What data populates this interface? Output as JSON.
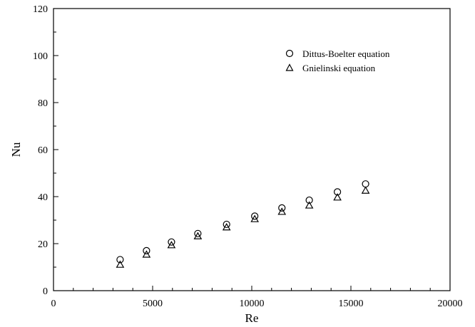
{
  "chart_data": {
    "type": "scatter",
    "xlabel": "Re",
    "ylabel": "Nu",
    "xlim": [
      0,
      20000
    ],
    "ylim": [
      0,
      120
    ],
    "x_ticks": [
      0,
      5000,
      10000,
      15000,
      20000
    ],
    "y_ticks": [
      0,
      20,
      40,
      60,
      80,
      100,
      120
    ],
    "grid": false,
    "legend_position": "top-right",
    "series": [
      {
        "name": "Dittus-Boelter equation",
        "marker": "circle",
        "color": "#000000",
        "points": [
          {
            "x": 3360,
            "y": 13.2
          },
          {
            "x": 4690,
            "y": 17.0
          },
          {
            "x": 5950,
            "y": 20.7
          },
          {
            "x": 7280,
            "y": 24.3
          },
          {
            "x": 8730,
            "y": 28.2
          },
          {
            "x": 10150,
            "y": 31.7
          },
          {
            "x": 11520,
            "y": 35.2
          },
          {
            "x": 12900,
            "y": 38.5
          },
          {
            "x": 14320,
            "y": 42.0
          },
          {
            "x": 15740,
            "y": 45.4
          }
        ]
      },
      {
        "name": "Gnielinski equation",
        "marker": "triangle",
        "color": "#000000",
        "points": [
          {
            "x": 3360,
            "y": 11.0
          },
          {
            "x": 4690,
            "y": 15.3
          },
          {
            "x": 5950,
            "y": 19.3
          },
          {
            "x": 7280,
            "y": 23.1
          },
          {
            "x": 8730,
            "y": 26.9
          },
          {
            "x": 10150,
            "y": 30.4
          },
          {
            "x": 11520,
            "y": 33.5
          },
          {
            "x": 12900,
            "y": 36.2
          },
          {
            "x": 14320,
            "y": 39.6
          },
          {
            "x": 15740,
            "y": 42.5
          }
        ]
      }
    ]
  }
}
